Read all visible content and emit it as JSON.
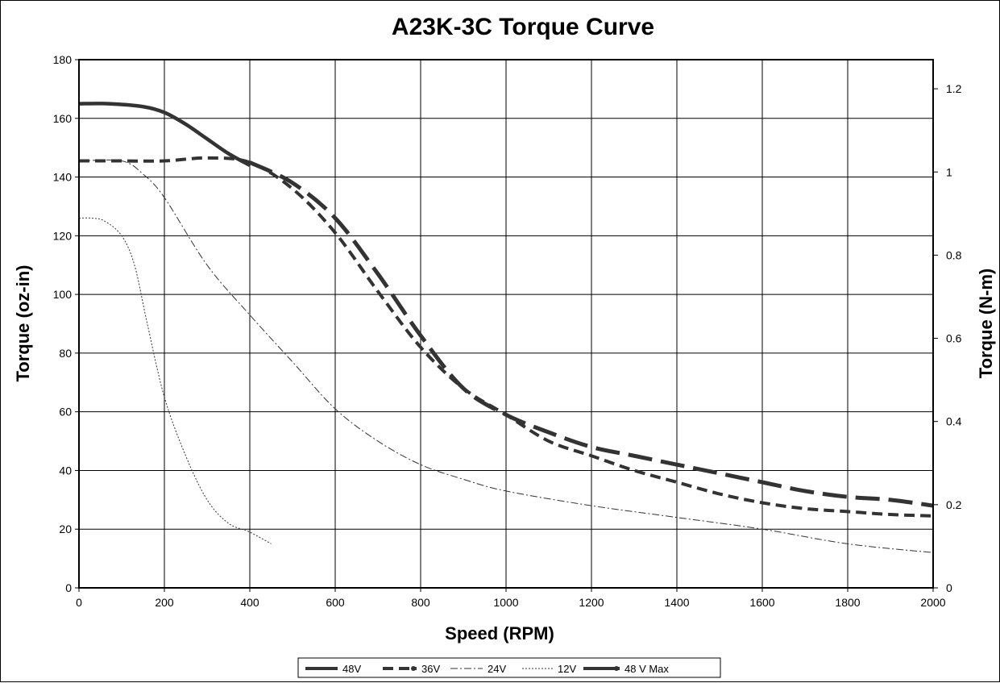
{
  "chart_data": {
    "type": "line",
    "title": "A23K-3C Torque Curve",
    "xlabel": "Speed (RPM)",
    "ylabel": "Torque (oz-in)",
    "y2label": "Torque (N-m)",
    "xlim": [
      0,
      2000
    ],
    "ylim": [
      0,
      180
    ],
    "y2lim": [
      0,
      1.27
    ],
    "xticks": [
      "0",
      "200",
      "400",
      "600",
      "800",
      "1000",
      "1200",
      "1400",
      "1600",
      "1800",
      "2000"
    ],
    "yticks": [
      "0",
      "20",
      "40",
      "60",
      "80",
      "100",
      "120",
      "140",
      "160",
      "180"
    ],
    "y2ticks": [
      "0",
      "0.2",
      "0.4",
      "0.6",
      "0.8",
      "1",
      "1.2"
    ],
    "grid": true,
    "legend_position": "bottom",
    "series": [
      {
        "name": "48V",
        "style": "long-dash",
        "color": "#333333",
        "x": [
          400,
          500,
          600,
          700,
          800,
          900,
          1000,
          1100,
          1200,
          1300,
          1400,
          1500,
          1600,
          1700,
          1800,
          1900,
          2000
        ],
        "y": [
          145,
          138,
          126,
          107,
          86,
          68,
          59,
          53,
          48,
          45,
          42,
          39,
          36,
          33,
          31,
          30,
          28
        ]
      },
      {
        "name": "36V",
        "style": "dash",
        "color": "#333333",
        "x": [
          0,
          100,
          200,
          300,
          400,
          500,
          600,
          700,
          800,
          900,
          1000,
          1100,
          1200,
          1300,
          1400,
          1500,
          1600,
          1700,
          1800,
          1900,
          2000
        ],
        "y": [
          145.5,
          145.5,
          145.5,
          146.5,
          145,
          136,
          121,
          101,
          82,
          68,
          59,
          50,
          45,
          40,
          36,
          32,
          29,
          27,
          26,
          25,
          24.5
        ]
      },
      {
        "name": "24V",
        "style": "dash-dot",
        "color": "#333333",
        "x": [
          0,
          100,
          150,
          200,
          300,
          400,
          500,
          600,
          700,
          800,
          900,
          1000,
          1200,
          1400,
          1600,
          1800,
          2000
        ],
        "y": [
          145.5,
          145.5,
          141,
          133,
          110,
          93,
          77,
          61,
          50,
          42,
          37,
          33,
          28,
          24,
          20,
          15,
          12
        ]
      },
      {
        "name": "12V",
        "style": "dotted",
        "color": "#333333",
        "x": [
          0,
          30,
          60,
          100,
          130,
          160,
          200,
          250,
          300,
          350,
          400,
          450
        ],
        "y": [
          126,
          126,
          125,
          120,
          110,
          90,
          65,
          45,
          30,
          22,
          19,
          15
        ]
      },
      {
        "name": "48 V Max",
        "style": "solid",
        "color": "#333333",
        "x": [
          0,
          70,
          150,
          200,
          250,
          300,
          350,
          400
        ],
        "y": [
          165,
          165,
          164,
          162,
          158,
          153,
          148,
          144
        ]
      }
    ]
  }
}
